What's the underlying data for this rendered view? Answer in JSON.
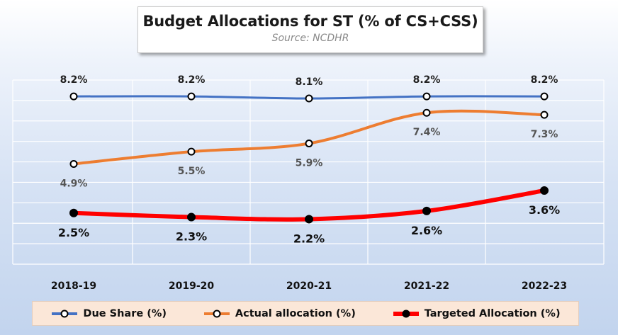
{
  "chart_data": {
    "type": "line",
    "title": "Budget Allocations for ST (% of CS+CSS)",
    "subtitle": "Source: NCDHR",
    "categories": [
      "2018-19",
      "2019-20",
      "2020-21",
      "2021-22",
      "2022-23"
    ],
    "ylim": [
      0,
      9
    ],
    "grid": true,
    "legend_position": "bottom",
    "series": [
      {
        "name": "Due Share (%)",
        "values": [
          8.2,
          8.2,
          8.1,
          8.2,
          8.2
        ],
        "labels": [
          "8.2%",
          "8.2%",
          "8.1%",
          "8.2%",
          "8.2%"
        ],
        "color": "#4472c4",
        "marker_fill": "#ffffff"
      },
      {
        "name": "Actual allocation (%)",
        "values": [
          4.9,
          5.5,
          5.9,
          7.4,
          7.3
        ],
        "labels": [
          "4.9%",
          "5.5%",
          "5.9%",
          "7.4%",
          "7.3%"
        ],
        "color": "#ed7d31",
        "marker_fill": "#ffffff"
      },
      {
        "name": "Targeted Allocation (%)",
        "values": [
          2.5,
          2.3,
          2.2,
          2.6,
          3.6
        ],
        "labels": [
          "2.5%",
          "2.3%",
          "2.2%",
          "2.6%",
          "3.6%"
        ],
        "color": "#ff0000",
        "marker_fill": "#000000"
      }
    ]
  }
}
